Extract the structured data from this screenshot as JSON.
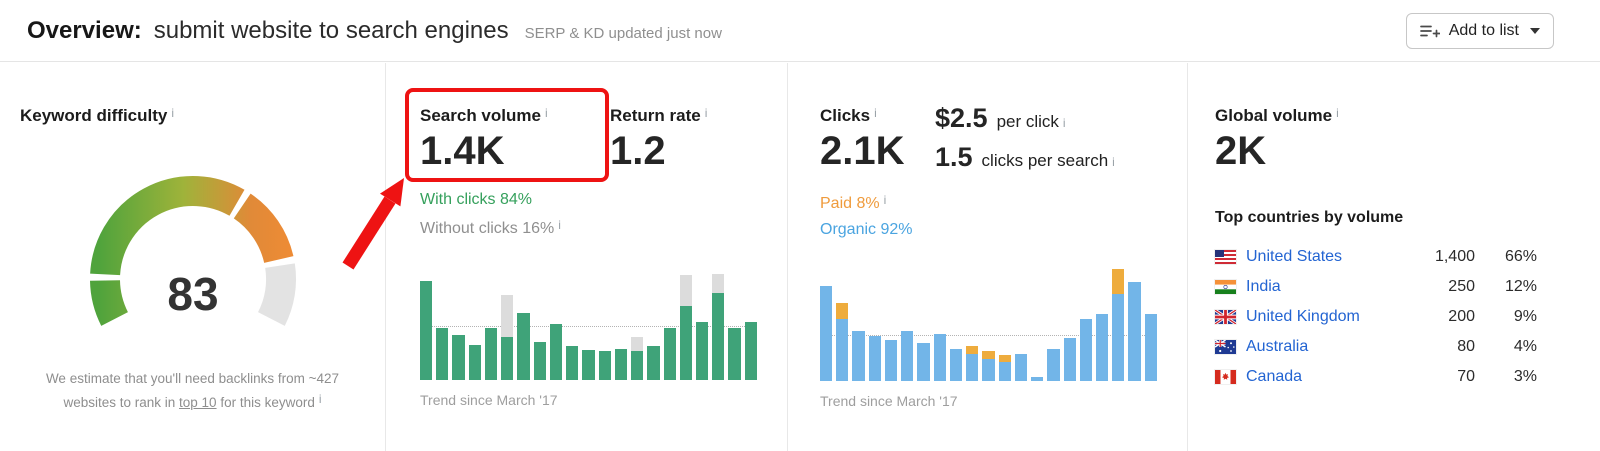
{
  "header": {
    "title_label": "Overview:",
    "keyword": "submit website to search engines",
    "updated_note": "SERP & KD updated just now",
    "add_to_list_label": "Add to list"
  },
  "annotation": {
    "color": "#ee1313"
  },
  "keyword_difficulty": {
    "heading": "Keyword difficulty",
    "score": 83,
    "score_label": "83",
    "note_pre": "We estimate that you'll need backlinks from ~427 websites to rank in ",
    "note_link": "top 10",
    "note_post": " for this keyword",
    "gauge_colors": {
      "start": "#4fa33c",
      "mid": "#9fb33a",
      "end": "#ed8b35",
      "rest": "#e3e3e3"
    }
  },
  "search_volume": {
    "heading": "Search volume",
    "value": "1.4K",
    "with_clicks": "With clicks 84%",
    "without_clicks": "Without clicks 16%",
    "trend_caption": "Trend since March '17",
    "chart": {
      "type": "bar",
      "bar_color": "#3fa379",
      "cap_color": "#dcdcdc",
      "dotline_bottom_pct": 47,
      "bars": [
        [
          88,
          88
        ],
        [
          46,
          46
        ],
        [
          40,
          40
        ],
        [
          31,
          31
        ],
        [
          46,
          46
        ],
        [
          38,
          76
        ],
        [
          60,
          60
        ],
        [
          34,
          34
        ],
        [
          50,
          50
        ],
        [
          30,
          30
        ],
        [
          27,
          27
        ],
        [
          26,
          26
        ],
        [
          28,
          28
        ],
        [
          26,
          38
        ],
        [
          30,
          30
        ],
        [
          46,
          46
        ],
        [
          66,
          94
        ],
        [
          52,
          52
        ],
        [
          78,
          95
        ],
        [
          46,
          46
        ],
        [
          52,
          52
        ]
      ]
    }
  },
  "return_rate": {
    "heading": "Return rate",
    "value": "1.2"
  },
  "clicks": {
    "heading": "Clicks",
    "value": "2.1K",
    "cpc_value": "$2.5",
    "cpc_label": "per click",
    "cps_value": "1.5",
    "cps_label": "clicks per search",
    "paid": "Paid 8%",
    "organic": "Organic 92%",
    "trend_caption": "Trend since March '17",
    "chart": {
      "type": "bar",
      "bar_color": "#72b5e8",
      "cap_color": "#eeac3d",
      "dotline_bottom_pct": 40,
      "bars": [
        [
          85,
          85
        ],
        [
          55,
          70
        ],
        [
          45,
          45
        ],
        [
          40,
          40
        ],
        [
          37,
          37
        ],
        [
          45,
          45
        ],
        [
          34,
          34
        ],
        [
          42,
          42
        ],
        [
          29,
          29
        ],
        [
          24,
          31
        ],
        [
          20,
          27
        ],
        [
          17,
          23
        ],
        [
          24,
          24
        ],
        [
          4,
          4
        ],
        [
          29,
          29
        ],
        [
          38,
          38
        ],
        [
          55,
          55
        ],
        [
          60,
          60
        ],
        [
          78,
          100
        ],
        [
          88,
          88
        ],
        [
          60,
          60
        ]
      ]
    }
  },
  "global_volume": {
    "heading": "Global volume",
    "value": "2K",
    "countries_heading": "Top countries by volume",
    "countries": [
      {
        "name": "United States",
        "volume": "1,400",
        "share": "66%",
        "flag": "us"
      },
      {
        "name": "India",
        "volume": "250",
        "share": "12%",
        "flag": "in"
      },
      {
        "name": "United Kingdom",
        "volume": "200",
        "share": "9%",
        "flag": "gb"
      },
      {
        "name": "Australia",
        "volume": "80",
        "share": "4%",
        "flag": "au"
      },
      {
        "name": "Canada",
        "volume": "70",
        "share": "3%",
        "flag": "ca"
      }
    ]
  }
}
